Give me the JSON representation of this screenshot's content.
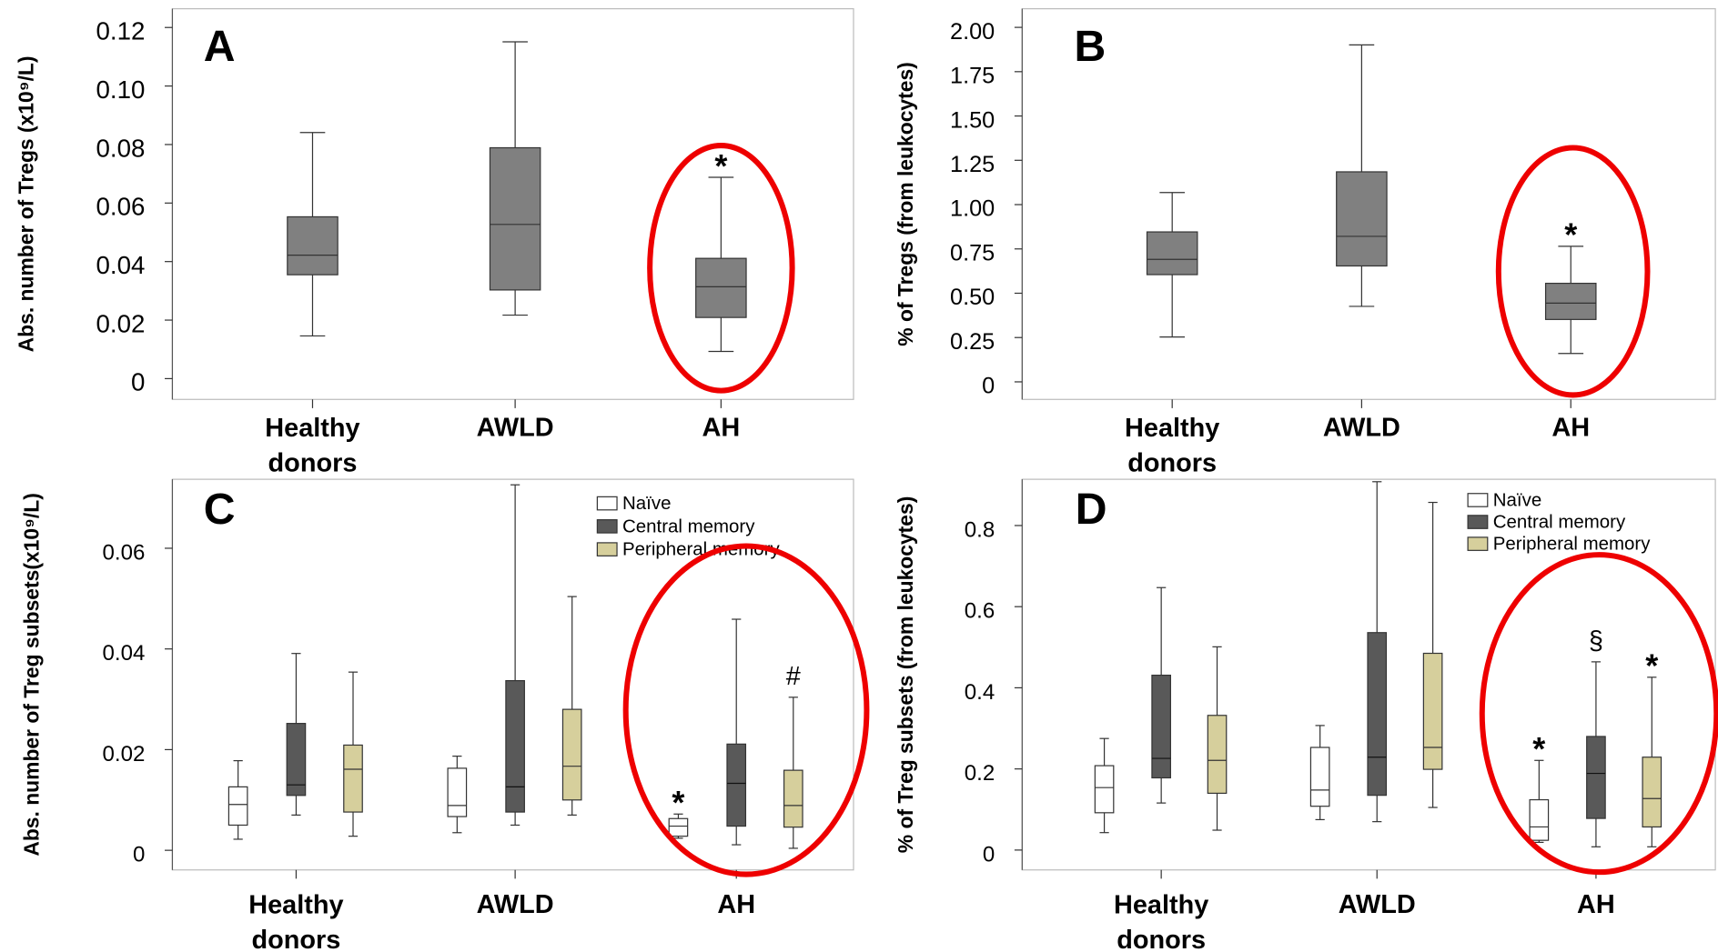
{
  "chart_data": [
    {
      "type": "box",
      "panel_label": "A",
      "y_label": "Abs. number of Tregs (x10⁹/L)",
      "categories": [
        "Healthy donors",
        "AWLD",
        "AH"
      ],
      "color": "#808080",
      "boxes": [
        {
          "whislo": 0.0146,
          "q1": 0.0355,
          "med": 0.0422,
          "q3": 0.0553,
          "whishi": 0.0841
        },
        {
          "whislo": 0.0217,
          "q1": 0.0303,
          "med": 0.0527,
          "q3": 0.0789,
          "whishi": 0.1151
        },
        {
          "whislo": 0.0093,
          "q1": 0.0209,
          "med": 0.0314,
          "q3": 0.0411,
          "whishi": 0.0688
        }
      ],
      "annotations": [
        {
          "text": "*",
          "category": 2
        }
      ],
      "ylim": [
        -0.0071,
        0.1264
      ],
      "yticks": [
        0,
        0.02,
        0.04,
        0.06,
        0.08,
        {
          "value": 0.1,
          "label": "0.10"
        },
        0.12
      ]
    },
    {
      "type": "box",
      "panel_label": "B",
      "y_label": "% of Tregs (from leukocytes)",
      "categories": [
        "Healthy donors",
        "AWLD",
        "AH"
      ],
      "color": "#808080",
      "boxes": [
        {
          "whislo": 0.253,
          "q1": 0.605,
          "med": 0.691,
          "q3": 0.846,
          "whishi": 1.068
        },
        {
          "whislo": 0.426,
          "q1": 0.654,
          "med": 0.821,
          "q3": 1.185,
          "whishi": 1.901
        },
        {
          "whislo": 0.16,
          "q1": 0.352,
          "med": 0.444,
          "q3": 0.556,
          "whishi": 0.765
        }
      ],
      "annotations": [
        {
          "text": "*",
          "category": 2
        }
      ],
      "ylim": [
        -0.099,
        2.105
      ],
      "yticks": [
        0,
        0.25,
        {
          "value": 0.5,
          "label": "0.50"
        },
        0.75,
        {
          "value": 1,
          "label": "1.00"
        },
        1.25,
        {
          "value": 1.5,
          "label": "1.50"
        },
        1.75,
        {
          "value": 2,
          "label": "2.00"
        }
      ]
    },
    {
      "type": "grouped_box",
      "panel_label": "C",
      "y_label": "Abs. number of Treg subsets(x10⁹/L)",
      "categories": [
        "Healthy donors",
        "AWLD",
        "AH"
      ],
      "series": [
        {
          "name": "Naïve",
          "color": "#ffffff",
          "boxes": [
            {
              "whislo": 0.0022,
              "q1": 0.005,
              "med": 0.0091,
              "q3": 0.0126,
              "whishi": 0.0178
            },
            {
              "whislo": 0.0035,
              "q1": 0.0067,
              "med": 0.0089,
              "q3": 0.0163,
              "whishi": 0.0187
            },
            {
              "whislo": 0.0024,
              "q1": 0.0028,
              "med": 0.0048,
              "q3": 0.0063,
              "whishi": 0.0072
            }
          ]
        },
        {
          "name": "Central memory",
          "color": "#595959",
          "boxes": [
            {
              "whislo": 0.007,
              "q1": 0.0109,
              "med": 0.013,
              "q3": 0.0252,
              "whishi": 0.0391
            },
            {
              "whislo": 0.005,
              "q1": 0.0076,
              "med": 0.0126,
              "q3": 0.0337,
              "whishi": 0.0726
            },
            {
              "whislo": 0.0011,
              "q1": 0.0048,
              "med": 0.0133,
              "q3": 0.0211,
              "whishi": 0.0459
            }
          ]
        },
        {
          "name": "Peripheral memory",
          "color": "#d6cf9c",
          "boxes": [
            {
              "whislo": 0.0028,
              "q1": 0.0076,
              "med": 0.0161,
              "q3": 0.0209,
              "whishi": 0.0354
            },
            {
              "whislo": 0.007,
              "q1": 0.01,
              "med": 0.0167,
              "q3": 0.028,
              "whishi": 0.0504
            },
            {
              "whislo": 0.0004,
              "q1": 0.0046,
              "med": 0.0089,
              "q3": 0.0159,
              "whishi": 0.0304
            }
          ]
        }
      ],
      "annotations": [
        {
          "text": "*",
          "category": 2,
          "series": 0
        },
        {
          "text": "#",
          "category": 2,
          "series": 2
        }
      ],
      "ylim": [
        -0.0039,
        0.0737
      ],
      "yticks": [
        0,
        0.02,
        0.04,
        0.06
      ]
    },
    {
      "type": "grouped_box",
      "panel_label": "D",
      "y_label": "% of Treg subsets (from leukocytes)",
      "categories": [
        "Healthy donors",
        "AWLD",
        "AH"
      ],
      "series": [
        {
          "name": "Naïve",
          "color": "#ffffff",
          "boxes": [
            {
              "whislo": 0.043,
              "q1": 0.092,
              "med": 0.154,
              "q3": 0.208,
              "whishi": 0.275
            },
            {
              "whislo": 0.075,
              "q1": 0.108,
              "med": 0.148,
              "q3": 0.253,
              "whishi": 0.307
            },
            {
              "whislo": 0.019,
              "q1": 0.024,
              "med": 0.057,
              "q3": 0.124,
              "whishi": 0.221
            }
          ]
        },
        {
          "name": "Central memory",
          "color": "#595959",
          "boxes": [
            {
              "whislo": 0.116,
              "q1": 0.178,
              "med": 0.226,
              "q3": 0.431,
              "whishi": 0.647
            },
            {
              "whislo": 0.07,
              "q1": 0.135,
              "med": 0.229,
              "q3": 0.536,
              "whishi": 0.908
            },
            {
              "whislo": 0.008,
              "q1": 0.078,
              "med": 0.189,
              "q3": 0.28,
              "whishi": 0.464
            }
          ]
        },
        {
          "name": "Peripheral memory",
          "color": "#d6cf9c",
          "boxes": [
            {
              "whislo": 0.049,
              "q1": 0.14,
              "med": 0.221,
              "q3": 0.332,
              "whishi": 0.501
            },
            {
              "whislo": 0.105,
              "q1": 0.199,
              "med": 0.253,
              "q3": 0.485,
              "whishi": 0.857
            },
            {
              "whislo": 0.008,
              "q1": 0.057,
              "med": 0.127,
              "q3": 0.229,
              "whishi": 0.426
            }
          ]
        }
      ],
      "annotations": [
        {
          "text": "*",
          "category": 2,
          "series": 0
        },
        {
          "text": "§",
          "category": 2,
          "series": 1
        },
        {
          "text": "*",
          "category": 2,
          "series": 2
        }
      ],
      "ylim": [
        -0.049,
        0.914
      ],
      "yticks": [
        0,
        0.2,
        0.4,
        0.6,
        0.8
      ]
    }
  ]
}
